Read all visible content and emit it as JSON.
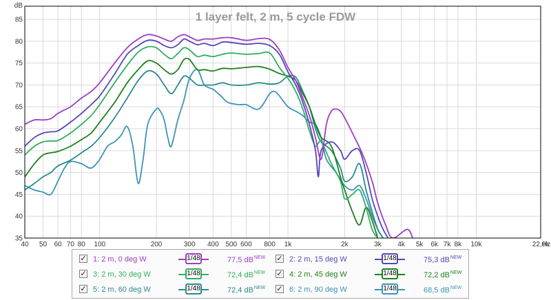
{
  "chart_data": {
    "type": "line",
    "title": "1 layer felt, 2 m, 5 cycle FDW",
    "ylabel": "dB",
    "xunit": "Hz",
    "xscale": "log",
    "xlim": [
      40,
      22000
    ],
    "ylim": [
      35,
      88
    ],
    "grid": true,
    "yticks": [
      "35",
      "40",
      "45",
      "50",
      "55",
      "60",
      "65",
      "70",
      "75",
      "80",
      "85"
    ],
    "xticks": [
      {
        "v": 40,
        "t": "40"
      },
      {
        "v": 50,
        "t": "50"
      },
      {
        "v": 60,
        "t": "60"
      },
      {
        "v": 70,
        "t": "70"
      },
      {
        "v": 80,
        "t": "80"
      },
      {
        "v": 100,
        "t": "100"
      },
      {
        "v": 200,
        "t": "200"
      },
      {
        "v": 300,
        "t": "300"
      },
      {
        "v": 400,
        "t": "400"
      },
      {
        "v": 500,
        "t": "500"
      },
      {
        "v": 600,
        "t": "600"
      },
      {
        "v": 800,
        "t": "800"
      },
      {
        "v": 1000,
        "t": "1k"
      },
      {
        "v": 2000,
        "t": "2k"
      },
      {
        "v": 3000,
        "t": "3k"
      },
      {
        "v": 4000,
        "t": "4k"
      },
      {
        "v": 5000,
        "t": "5k"
      },
      {
        "v": 6000,
        "t": "6k"
      },
      {
        "v": 7000,
        "t": "7k"
      },
      {
        "v": 8000,
        "t": "8k"
      },
      {
        "v": 10000,
        "t": "10k"
      },
      {
        "v": 22000,
        "t": "22,0k"
      }
    ],
    "series": [
      {
        "name": "1: 2 m, 0 deg W",
        "color": "#9b3fc1",
        "smoothing": "1/48",
        "level": "77,5 dB",
        "points": [
          [
            40,
            61
          ],
          [
            45,
            62
          ],
          [
            50,
            62
          ],
          [
            55,
            62.3
          ],
          [
            60,
            63.5
          ],
          [
            65,
            64.3
          ],
          [
            70,
            65
          ],
          [
            80,
            67
          ],
          [
            90,
            68.5
          ],
          [
            100,
            70.5
          ],
          [
            120,
            75
          ],
          [
            140,
            78.5
          ],
          [
            160,
            80.5
          ],
          [
            180,
            81.5
          ],
          [
            200,
            81.2
          ],
          [
            220,
            80.5
          ],
          [
            240,
            80
          ],
          [
            260,
            81
          ],
          [
            280,
            81.5
          ],
          [
            300,
            81
          ],
          [
            330,
            80.2
          ],
          [
            360,
            80.5
          ],
          [
            400,
            80.5
          ],
          [
            450,
            80.8
          ],
          [
            500,
            80.8
          ],
          [
            600,
            80.2
          ],
          [
            700,
            80.6
          ],
          [
            800,
            80.4
          ],
          [
            900,
            78
          ],
          [
            1000,
            74
          ],
          [
            1100,
            71
          ],
          [
            1200,
            67
          ],
          [
            1300,
            63
          ],
          [
            1400,
            58
          ],
          [
            1500,
            53
          ],
          [
            1600,
            61
          ],
          [
            1700,
            64
          ],
          [
            1800,
            64.5
          ],
          [
            1900,
            64
          ],
          [
            2000,
            62.5
          ],
          [
            2200,
            59
          ],
          [
            2500,
            54
          ],
          [
            2800,
            48
          ],
          [
            3000,
            43
          ],
          [
            3300,
            38
          ],
          [
            3600,
            35
          ],
          [
            4300,
            37
          ],
          [
            4600,
            35
          ]
        ]
      },
      {
        "name": "2: 2 m, 15 deg W",
        "color": "#5446b8",
        "smoothing": "1/48",
        "level": "75,3 dB",
        "points": [
          [
            40,
            56
          ],
          [
            45,
            58
          ],
          [
            50,
            59
          ],
          [
            55,
            59.3
          ],
          [
            60,
            59.5
          ],
          [
            70,
            61.5
          ],
          [
            80,
            63.5
          ],
          [
            90,
            65.5
          ],
          [
            100,
            67.5
          ],
          [
            120,
            72.5
          ],
          [
            140,
            77
          ],
          [
            160,
            79
          ],
          [
            180,
            80.2
          ],
          [
            200,
            80
          ],
          [
            220,
            79
          ],
          [
            240,
            78.5
          ],
          [
            260,
            79.2
          ],
          [
            280,
            80.5
          ],
          [
            300,
            80
          ],
          [
            330,
            79.2
          ],
          [
            360,
            79.5
          ],
          [
            400,
            79
          ],
          [
            450,
            79.8
          ],
          [
            500,
            79.7
          ],
          [
            600,
            79.3
          ],
          [
            700,
            79.5
          ],
          [
            800,
            79
          ],
          [
            900,
            77
          ],
          [
            1000,
            73
          ],
          [
            1100,
            70
          ],
          [
            1200,
            66
          ],
          [
            1300,
            61
          ],
          [
            1400,
            55
          ],
          [
            1450,
            49
          ],
          [
            1500,
            55
          ],
          [
            1700,
            57
          ],
          [
            1900,
            55
          ],
          [
            2000,
            53
          ],
          [
            2200,
            55
          ],
          [
            2400,
            55
          ],
          [
            2600,
            50
          ],
          [
            2800,
            44
          ],
          [
            3000,
            40
          ],
          [
            3200,
            37
          ],
          [
            3400,
            35
          ]
        ]
      },
      {
        "name": "3: 2 m, 30 deg W",
        "color": "#2fae5e",
        "smoothing": "1/48",
        "level": "72,4 dB",
        "points": [
          [
            40,
            54
          ],
          [
            45,
            56
          ],
          [
            50,
            57
          ],
          [
            55,
            57.2
          ],
          [
            60,
            57.3
          ],
          [
            70,
            59
          ],
          [
            80,
            61
          ],
          [
            90,
            63
          ],
          [
            100,
            65.5
          ],
          [
            120,
            70.5
          ],
          [
            140,
            74.5
          ],
          [
            160,
            77.5
          ],
          [
            180,
            78.7
          ],
          [
            200,
            78.5
          ],
          [
            220,
            77
          ],
          [
            240,
            76
          ],
          [
            260,
            77.2
          ],
          [
            280,
            78.5
          ],
          [
            300,
            78
          ],
          [
            330,
            76.5
          ],
          [
            360,
            76.8
          ],
          [
            400,
            76.5
          ],
          [
            450,
            77
          ],
          [
            500,
            77.3
          ],
          [
            600,
            77
          ],
          [
            700,
            77.2
          ],
          [
            800,
            77.3
          ],
          [
            900,
            74
          ],
          [
            1000,
            71.5
          ],
          [
            1100,
            68.5
          ],
          [
            1200,
            64.5
          ],
          [
            1300,
            59.5
          ],
          [
            1400,
            56
          ],
          [
            1500,
            57
          ],
          [
            1700,
            52
          ],
          [
            1900,
            48
          ],
          [
            2000,
            44
          ],
          [
            2200,
            45
          ],
          [
            2400,
            46
          ],
          [
            2600,
            42
          ],
          [
            2800,
            37
          ],
          [
            3000,
            35
          ]
        ]
      },
      {
        "name": "4: 2 m, 45 deg W",
        "color": "#1d7f1d",
        "smoothing": "1/48",
        "level": "72,2 dB",
        "points": [
          [
            40,
            49
          ],
          [
            45,
            52
          ],
          [
            50,
            54
          ],
          [
            55,
            54.5
          ],
          [
            60,
            54.8
          ],
          [
            70,
            56
          ],
          [
            80,
            57.5
          ],
          [
            90,
            59
          ],
          [
            100,
            61.5
          ],
          [
            120,
            66
          ],
          [
            140,
            70.5
          ],
          [
            160,
            73.5
          ],
          [
            180,
            75.5
          ],
          [
            200,
            75
          ],
          [
            220,
            73.5
          ],
          [
            240,
            72.5
          ],
          [
            260,
            73.5
          ],
          [
            280,
            75.8
          ],
          [
            300,
            75.8
          ],
          [
            330,
            73.5
          ],
          [
            360,
            73.5
          ],
          [
            400,
            73.2
          ],
          [
            450,
            73.8
          ],
          [
            500,
            73.7
          ],
          [
            600,
            74
          ],
          [
            700,
            74.2
          ],
          [
            800,
            73.6
          ],
          [
            900,
            72.6
          ],
          [
            1000,
            72
          ],
          [
            1100,
            71
          ],
          [
            1200,
            68
          ],
          [
            1300,
            65
          ],
          [
            1400,
            61
          ],
          [
            1500,
            58
          ],
          [
            1700,
            56
          ],
          [
            1900,
            49
          ],
          [
            2000,
            46
          ],
          [
            2200,
            41
          ],
          [
            2400,
            38
          ],
          [
            2600,
            42
          ],
          [
            2800,
            39
          ],
          [
            3000,
            35
          ]
        ]
      },
      {
        "name": "5: 2 m, 60 deg W",
        "color": "#2a8a8e",
        "smoothing": "1/48",
        "level": "72,4 dB",
        "points": [
          [
            40,
            46
          ],
          [
            45,
            47.5
          ],
          [
            50,
            49
          ],
          [
            55,
            50
          ],
          [
            60,
            51.5
          ],
          [
            70,
            52.8
          ],
          [
            80,
            54.5
          ],
          [
            90,
            56
          ],
          [
            100,
            58
          ],
          [
            120,
            62.5
          ],
          [
            140,
            67
          ],
          [
            160,
            71
          ],
          [
            180,
            73.2
          ],
          [
            200,
            72.5
          ],
          [
            220,
            70
          ],
          [
            240,
            68
          ],
          [
            260,
            70
          ],
          [
            280,
            72
          ],
          [
            300,
            71.5
          ],
          [
            330,
            70
          ],
          [
            360,
            70
          ],
          [
            400,
            70
          ],
          [
            450,
            70.5
          ],
          [
            500,
            70
          ],
          [
            600,
            70
          ],
          [
            700,
            70.5
          ],
          [
            800,
            70.2
          ],
          [
            900,
            70.5
          ],
          [
            1000,
            72
          ],
          [
            1100,
            71.8
          ],
          [
            1200,
            68.5
          ],
          [
            1300,
            65
          ],
          [
            1400,
            60
          ],
          [
            1500,
            57
          ],
          [
            1700,
            55
          ],
          [
            1900,
            51
          ],
          [
            2000,
            48
          ],
          [
            2200,
            49
          ],
          [
            2400,
            52
          ],
          [
            2600,
            46
          ],
          [
            2800,
            41
          ],
          [
            3000,
            37
          ],
          [
            3200,
            35
          ]
        ]
      },
      {
        "name": "6: 2 m, 90 deg W",
        "color": "#3b93b8",
        "smoothing": "1/48",
        "level": "68,5 dB",
        "points": [
          [
            40,
            47
          ],
          [
            45,
            46
          ],
          [
            50,
            45.5
          ],
          [
            55,
            45
          ],
          [
            60,
            48
          ],
          [
            65,
            51
          ],
          [
            70,
            52.5
          ],
          [
            80,
            52
          ],
          [
            90,
            51
          ],
          [
            100,
            53
          ],
          [
            110,
            56
          ],
          [
            120,
            57
          ],
          [
            130,
            58.5
          ],
          [
            140,
            60.5
          ],
          [
            150,
            56
          ],
          [
            160,
            47.5
          ],
          [
            170,
            53
          ],
          [
            180,
            61
          ],
          [
            200,
            64.5
          ],
          [
            210,
            64
          ],
          [
            220,
            62
          ],
          [
            230,
            58
          ],
          [
            240,
            56
          ],
          [
            260,
            62
          ],
          [
            280,
            66.5
          ],
          [
            300,
            71.5
          ],
          [
            330,
            73.5
          ],
          [
            360,
            70
          ],
          [
            400,
            69
          ],
          [
            440,
            67.5
          ],
          [
            480,
            66
          ],
          [
            550,
            65.5
          ],
          [
            600,
            65.5
          ],
          [
            700,
            64.5
          ],
          [
            800,
            68
          ],
          [
            850,
            68.5
          ],
          [
            900,
            67.5
          ],
          [
            1000,
            65
          ],
          [
            1100,
            64
          ],
          [
            1200,
            63
          ],
          [
            1300,
            61.5
          ],
          [
            1400,
            61
          ],
          [
            1500,
            58
          ],
          [
            1600,
            53
          ],
          [
            1800,
            50
          ],
          [
            2000,
            47
          ],
          [
            2200,
            46
          ],
          [
            2400,
            47
          ],
          [
            2600,
            44
          ],
          [
            2800,
            40
          ],
          [
            3000,
            37
          ],
          [
            3200,
            35
          ]
        ]
      }
    ]
  }
}
